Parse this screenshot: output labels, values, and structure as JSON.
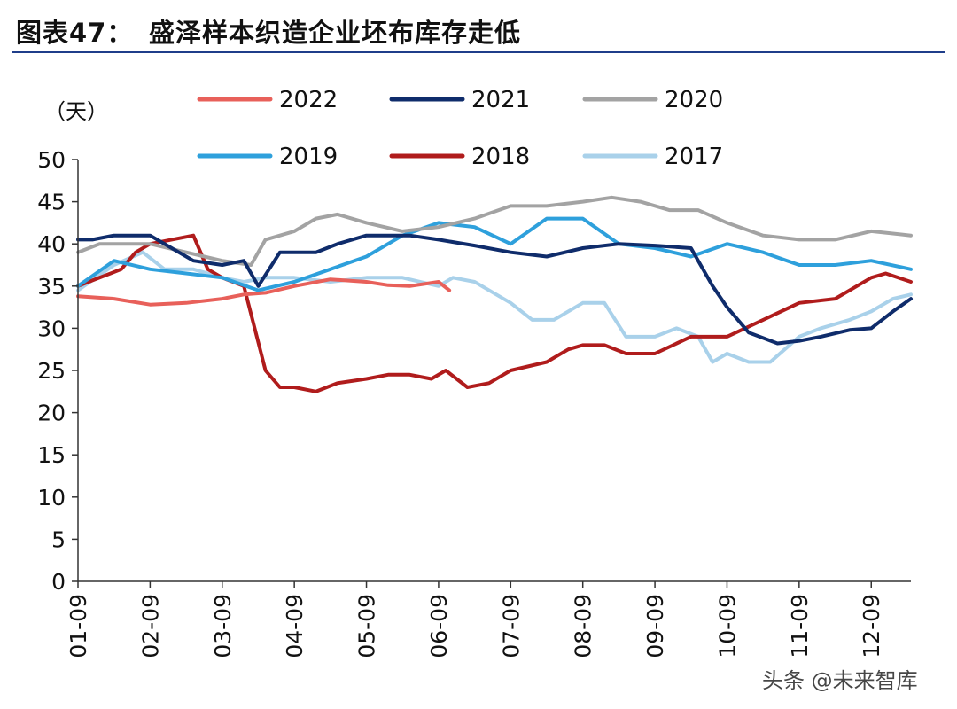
{
  "figure": {
    "number": "图表47：",
    "title": "盛泽样本织造企业坯布库存走低",
    "unit": "（天）",
    "watermark": "头条 @未来智库"
  },
  "chart_data": {
    "type": "line",
    "title": "盛泽样本织造企业坯布库存走低",
    "ylabel": "（天）",
    "xlabel": "",
    "ylim": [
      0,
      50
    ],
    "yticks": [
      0,
      5,
      10,
      15,
      20,
      25,
      30,
      35,
      40,
      45,
      50
    ],
    "xlim": [
      1,
      12.55
    ],
    "xticks": [
      1,
      2,
      3,
      4,
      5,
      6,
      7,
      8,
      9,
      10,
      11,
      12
    ],
    "xtick_labels": [
      "01-09",
      "02-09",
      "03-09",
      "04-09",
      "05-09",
      "06-09",
      "07-09",
      "08-09",
      "09-09",
      "10-09",
      "11-09",
      "12-09"
    ],
    "grid": false,
    "legend_position": "top",
    "series": [
      {
        "name": "2022",
        "color": "#e8605a",
        "x": [
          1,
          1.5,
          2,
          2.5,
          3,
          3.3,
          3.6,
          4,
          4.5,
          5,
          5.3,
          5.6,
          6,
          6.15
        ],
        "y": [
          33.8,
          33.5,
          32.8,
          33.0,
          33.5,
          34.0,
          34.2,
          35.0,
          35.8,
          35.5,
          35.1,
          35.0,
          35.5,
          34.5
        ]
      },
      {
        "name": "2021",
        "color": "#0f2c6b",
        "x": [
          1,
          1.2,
          1.5,
          1.8,
          2,
          2.3,
          2.6,
          3,
          3.3,
          3.5,
          3.8,
          4,
          4.3,
          4.6,
          5,
          5.3,
          5.6,
          6,
          6.5,
          7,
          7.5,
          8,
          8.5,
          9,
          9.5,
          9.8,
          10,
          10.3,
          10.7,
          11,
          11.3,
          11.7,
          12,
          12.3,
          12.55
        ],
        "y": [
          40.5,
          40.5,
          41.0,
          41.0,
          41.0,
          39.5,
          38.0,
          37.5,
          38.0,
          35.0,
          39.0,
          39.0,
          39.0,
          40.0,
          41.0,
          41.0,
          41.0,
          40.5,
          39.8,
          39.0,
          38.5,
          39.5,
          40.0,
          39.8,
          39.5,
          35.0,
          32.5,
          29.5,
          28.2,
          28.5,
          29.0,
          29.8,
          30.0,
          32.0,
          33.5
        ]
      },
      {
        "name": "2020",
        "color": "#a3a3a3",
        "x": [
          1,
          1.3,
          1.6,
          2,
          2.5,
          3,
          3.4,
          3.6,
          4,
          4.3,
          4.6,
          5,
          5.5,
          6,
          6.5,
          7,
          7.5,
          8,
          8.4,
          8.8,
          9.2,
          9.6,
          10,
          10.5,
          11,
          11.5,
          12,
          12.55
        ],
        "y": [
          39.0,
          40.0,
          40.0,
          40.0,
          39.0,
          38.0,
          37.5,
          40.5,
          41.5,
          43.0,
          43.5,
          42.5,
          41.5,
          42.0,
          43.0,
          44.5,
          44.5,
          45.0,
          45.5,
          45.0,
          44.0,
          44.0,
          42.5,
          41.0,
          40.5,
          40.5,
          41.5,
          41.0
        ]
      },
      {
        "name": "2019",
        "color": "#2ea0dc",
        "x": [
          1,
          1.5,
          2,
          2.5,
          3,
          3.5,
          4,
          4.5,
          5,
          5.5,
          6,
          6.5,
          7,
          7.5,
          8,
          8.5,
          9,
          9.5,
          10,
          10.5,
          11,
          11.5,
          12,
          12.55
        ],
        "y": [
          35.0,
          38.0,
          37.0,
          36.5,
          36.0,
          34.5,
          35.5,
          37.0,
          38.5,
          41.0,
          42.5,
          42.0,
          40.0,
          43.0,
          43.0,
          40.0,
          39.5,
          38.5,
          40.0,
          39.0,
          37.5,
          37.5,
          38.0,
          37.0
        ]
      },
      {
        "name": "2018",
        "color": "#b01c1c",
        "x": [
          1,
          1.3,
          1.6,
          1.8,
          2,
          2.3,
          2.6,
          2.8,
          3,
          3.3,
          3.6,
          3.8,
          4,
          4.3,
          4.6,
          5,
          5.3,
          5.6,
          5.9,
          6.1,
          6.4,
          6.7,
          7,
          7.5,
          7.8,
          8,
          8.3,
          8.6,
          9,
          9.5,
          10,
          10.5,
          11,
          11.5,
          12,
          12.2,
          12.55
        ],
        "y": [
          35.0,
          36.0,
          37.0,
          39.0,
          40.0,
          40.5,
          41.0,
          37.0,
          36.0,
          35.0,
          25.0,
          23.0,
          23.0,
          22.5,
          23.5,
          24.0,
          24.5,
          24.5,
          24.0,
          25.0,
          23.0,
          23.5,
          25.0,
          26.0,
          27.5,
          28.0,
          28.0,
          27.0,
          27.0,
          29.0,
          29.0,
          31.0,
          33.0,
          33.5,
          36.0,
          36.5,
          35.5
        ]
      },
      {
        "name": "2017",
        "color": "#a9d1ea",
        "x": [
          1,
          1.5,
          1.9,
          2.2,
          2.6,
          3,
          3.3,
          3.6,
          4,
          4.5,
          5,
          5.5,
          6,
          6.2,
          6.5,
          7,
          7.3,
          7.6,
          8,
          8.3,
          8.6,
          9,
          9.3,
          9.6,
          9.8,
          10,
          10.3,
          10.6,
          11,
          11.3,
          11.7,
          12,
          12.3,
          12.55
        ],
        "y": [
          34.5,
          37.5,
          39.0,
          37.0,
          37.0,
          36.0,
          35.5,
          36.0,
          36.0,
          35.5,
          36.0,
          36.0,
          35.0,
          36.0,
          35.5,
          33.0,
          31.0,
          31.0,
          33.0,
          33.0,
          29.0,
          29.0,
          30.0,
          29.0,
          26.0,
          27.0,
          26.0,
          26.0,
          29.0,
          30.0,
          31.0,
          32.0,
          33.5,
          34.0
        ]
      }
    ]
  }
}
